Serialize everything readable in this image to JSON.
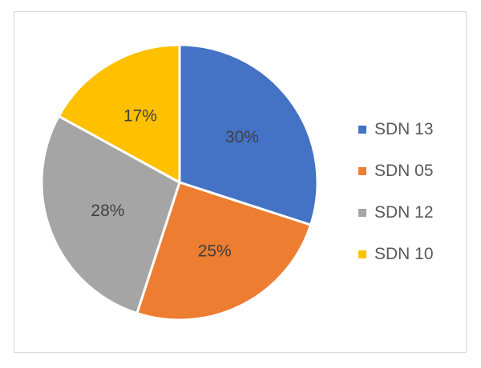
{
  "chart_data": {
    "type": "pie",
    "categories": [
      "SDN 13",
      "SDN 05",
      "SDN 12",
      "SDN 10"
    ],
    "values": [
      30,
      25,
      28,
      17
    ],
    "labels": [
      "30%",
      "25%",
      "28%",
      "17%"
    ],
    "colors": [
      "#4472c4",
      "#ed7d31",
      "#a5a5a5",
      "#ffc000"
    ],
    "title": "",
    "legend_position": "right"
  }
}
